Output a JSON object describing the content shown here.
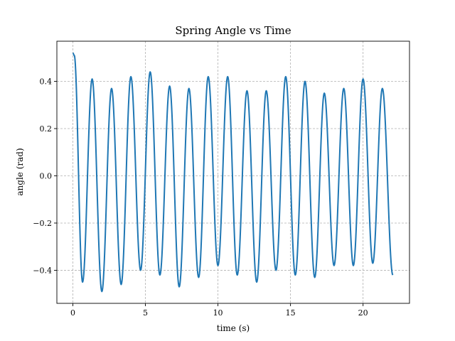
{
  "chart_data": {
    "type": "line",
    "title": "Spring Angle vs Time",
    "xlabel": "time (s)",
    "ylabel": "angle (rad)",
    "xlim": [
      -1.1,
      23.2
    ],
    "ylim": [
      -0.54,
      0.57
    ],
    "xticks": [
      0,
      5,
      10,
      15,
      20
    ],
    "yticks": [
      -0.4,
      -0.2,
      0.0,
      0.2,
      0.4
    ],
    "xtick_labels": [
      "0",
      "5",
      "10",
      "15",
      "20"
    ],
    "ytick_labels": [
      "−0.4",
      "−0.2",
      "0.0",
      "0.2",
      "0.4"
    ],
    "grid": true,
    "series": [
      {
        "color": "#1f77b4",
        "x": [
          0.0,
          0.1,
          0.67,
          1.33,
          2.0,
          2.67,
          3.33,
          4.0,
          4.67,
          5.33,
          6.0,
          6.67,
          7.33,
          8.0,
          8.67,
          9.33,
          10.0,
          10.67,
          11.33,
          12.0,
          12.67,
          13.33,
          14.0,
          14.67,
          15.33,
          16.0,
          16.67,
          17.33,
          18.0,
          18.67,
          19.33,
          20.0,
          20.67,
          21.33,
          22.05
        ],
        "y": [
          0.52,
          0.51,
          -0.45,
          0.41,
          -0.49,
          0.37,
          -0.46,
          0.42,
          -0.4,
          0.44,
          -0.42,
          0.38,
          -0.47,
          0.37,
          -0.43,
          0.42,
          -0.38,
          0.42,
          -0.42,
          0.36,
          -0.45,
          0.36,
          -0.4,
          0.42,
          -0.42,
          0.4,
          -0.43,
          0.35,
          -0.38,
          0.37,
          -0.38,
          0.41,
          -0.37,
          0.37,
          -0.42
        ]
      }
    ]
  }
}
